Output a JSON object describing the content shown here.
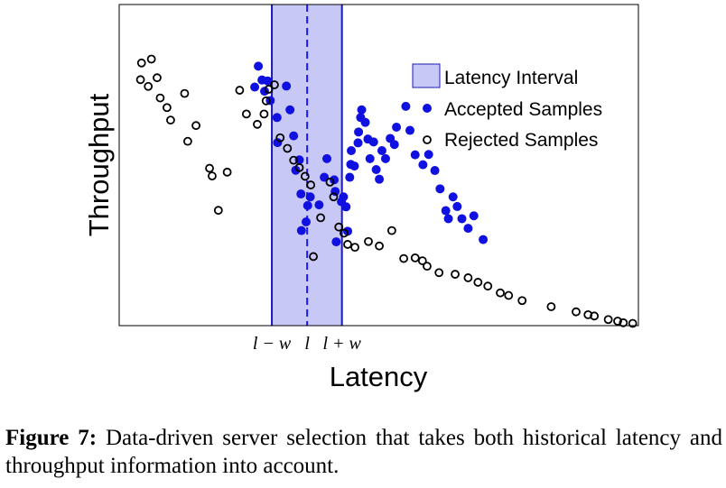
{
  "chart_data": {
    "type": "scatter",
    "xlabel": "Latency",
    "ylabel": "Throughput",
    "xlim": [
      0,
      100
    ],
    "ylim": [
      0,
      100
    ],
    "grid": false,
    "legend_position": "top-right",
    "interval": {
      "name": "Latency Interval",
      "lower": 29.4,
      "center": 36.2,
      "upper": 42.9,
      "tick_labels": [
        "l − w",
        "l",
        "l + w"
      ],
      "color": "#c8c8f6",
      "line_color": "#1a1ab0"
    },
    "series": [
      {
        "name": "Accepted Samples",
        "marker": "filled",
        "color": "#1010e0",
        "points": [
          [
            26.1,
            74.3
          ],
          [
            26.8,
            80.8
          ],
          [
            27.5,
            76.5
          ],
          [
            28.0,
            73.0
          ],
          [
            28.6,
            76.2
          ],
          [
            29.1,
            70.1
          ],
          [
            30.4,
            64.8
          ],
          [
            30.5,
            57.0
          ],
          [
            32.2,
            74.6
          ],
          [
            32.9,
            67.2
          ],
          [
            33.6,
            59.1
          ],
          [
            34.0,
            48.4
          ],
          [
            34.7,
            51.6
          ],
          [
            35.0,
            41.0
          ],
          [
            35.1,
            29.6
          ],
          [
            36.0,
            32.3
          ],
          [
            36.3,
            37.4
          ],
          [
            36.8,
            40.1
          ],
          [
            38.5,
            37.6
          ],
          [
            39.5,
            46.2
          ],
          [
            40.0,
            52.0
          ],
          [
            41.4,
            45.4
          ],
          [
            41.6,
            41.8
          ],
          [
            41.8,
            26.1
          ],
          [
            42.8,
            38.6
          ],
          [
            43.2,
            40.1
          ],
          [
            43.7,
            37.0
          ],
          [
            44.0,
            29.4
          ],
          [
            44.4,
            46.2
          ],
          [
            44.6,
            50.2
          ],
          [
            44.7,
            54.5
          ],
          [
            45.3,
            49.7
          ],
          [
            46.0,
            56.9
          ],
          [
            46.1,
            60.3
          ],
          [
            46.5,
            64.8
          ],
          [
            46.7,
            67.2
          ],
          [
            47.4,
            63.3
          ],
          [
            47.9,
            58.1
          ],
          [
            48.3,
            52.0
          ],
          [
            49.0,
            57.2
          ],
          [
            49.5,
            48.6
          ],
          [
            50.1,
            45.6
          ],
          [
            50.6,
            54.5
          ],
          [
            51.3,
            52.0
          ],
          [
            52.2,
            58.3
          ],
          [
            53.0,
            56.4
          ],
          [
            53.4,
            61.8
          ],
          [
            55.2,
            68.3
          ],
          [
            56.0,
            60.8
          ],
          [
            57.0,
            53.2
          ],
          [
            58.5,
            50.1
          ],
          [
            59.6,
            53.3
          ],
          [
            60.8,
            48.3
          ],
          [
            61.8,
            42.6
          ],
          [
            62.9,
            35.8
          ],
          [
            63.4,
            33.3
          ],
          [
            64.3,
            40.1
          ],
          [
            65.1,
            37.1
          ],
          [
            66.0,
            33.3
          ],
          [
            67.2,
            30.3
          ],
          [
            68.3,
            34.2
          ],
          [
            70.1,
            26.8
          ]
        ]
      },
      {
        "name": "Rejected Samples",
        "marker": "hollow",
        "color": "#000000",
        "points": [
          [
            4.1,
            76.6
          ],
          [
            4.3,
            81.8
          ],
          [
            5.6,
            74.5
          ],
          [
            6.2,
            83.0
          ],
          [
            7.3,
            77.2
          ],
          [
            7.9,
            70.9
          ],
          [
            9.2,
            67.9
          ],
          [
            9.9,
            64.0
          ],
          [
            12.6,
            72.3
          ],
          [
            13.2,
            57.4
          ],
          [
            14.8,
            62.3
          ],
          [
            17.4,
            49.0
          ],
          [
            17.9,
            46.6
          ],
          [
            19.1,
            35.9
          ],
          [
            20.8,
            47.8
          ],
          [
            23.2,
            73.3
          ],
          [
            24.5,
            65.9
          ],
          [
            26.6,
            62.7
          ],
          [
            27.9,
            65.9
          ],
          [
            28.3,
            70.0
          ],
          [
            28.8,
            73.6
          ],
          [
            29.9,
            75.0
          ],
          [
            31.0,
            58.5
          ],
          [
            32.4,
            55.2
          ],
          [
            33.6,
            51.5
          ],
          [
            34.7,
            49.2
          ],
          [
            35.8,
            46.5
          ],
          [
            36.9,
            43.8
          ],
          [
            37.4,
            21.5
          ],
          [
            38.8,
            33.6
          ],
          [
            40.6,
            44.7
          ],
          [
            41.3,
            40.1
          ],
          [
            42.3,
            30.7
          ],
          [
            43.3,
            28.8
          ],
          [
            44.0,
            25.3
          ],
          [
            45.4,
            24.4
          ],
          [
            48.0,
            26.2
          ],
          [
            50.1,
            24.8
          ],
          [
            52.5,
            29.6
          ],
          [
            54.8,
            20.9
          ],
          [
            57.0,
            21.1
          ],
          [
            58.4,
            20.2
          ],
          [
            59.3,
            18.5
          ],
          [
            61.6,
            16.5
          ],
          [
            64.7,
            16.0
          ],
          [
            67.2,
            14.9
          ],
          [
            69.1,
            13.5
          ],
          [
            71.0,
            12.3
          ],
          [
            73.4,
            10.2
          ],
          [
            75.0,
            9.4
          ],
          [
            77.6,
            7.8
          ],
          [
            83.2,
            5.9
          ],
          [
            88.0,
            4.3
          ],
          [
            90.3,
            3.4
          ],
          [
            91.5,
            3.0
          ],
          [
            94.2,
            1.9
          ],
          [
            96.0,
            1.4
          ],
          [
            97.1,
            0.9
          ],
          [
            98.9,
            0.7
          ]
        ]
      }
    ]
  },
  "caption": {
    "label": "Figure 7:",
    "text": " Data-driven server selection that takes both historical latency and throughput information into account."
  }
}
